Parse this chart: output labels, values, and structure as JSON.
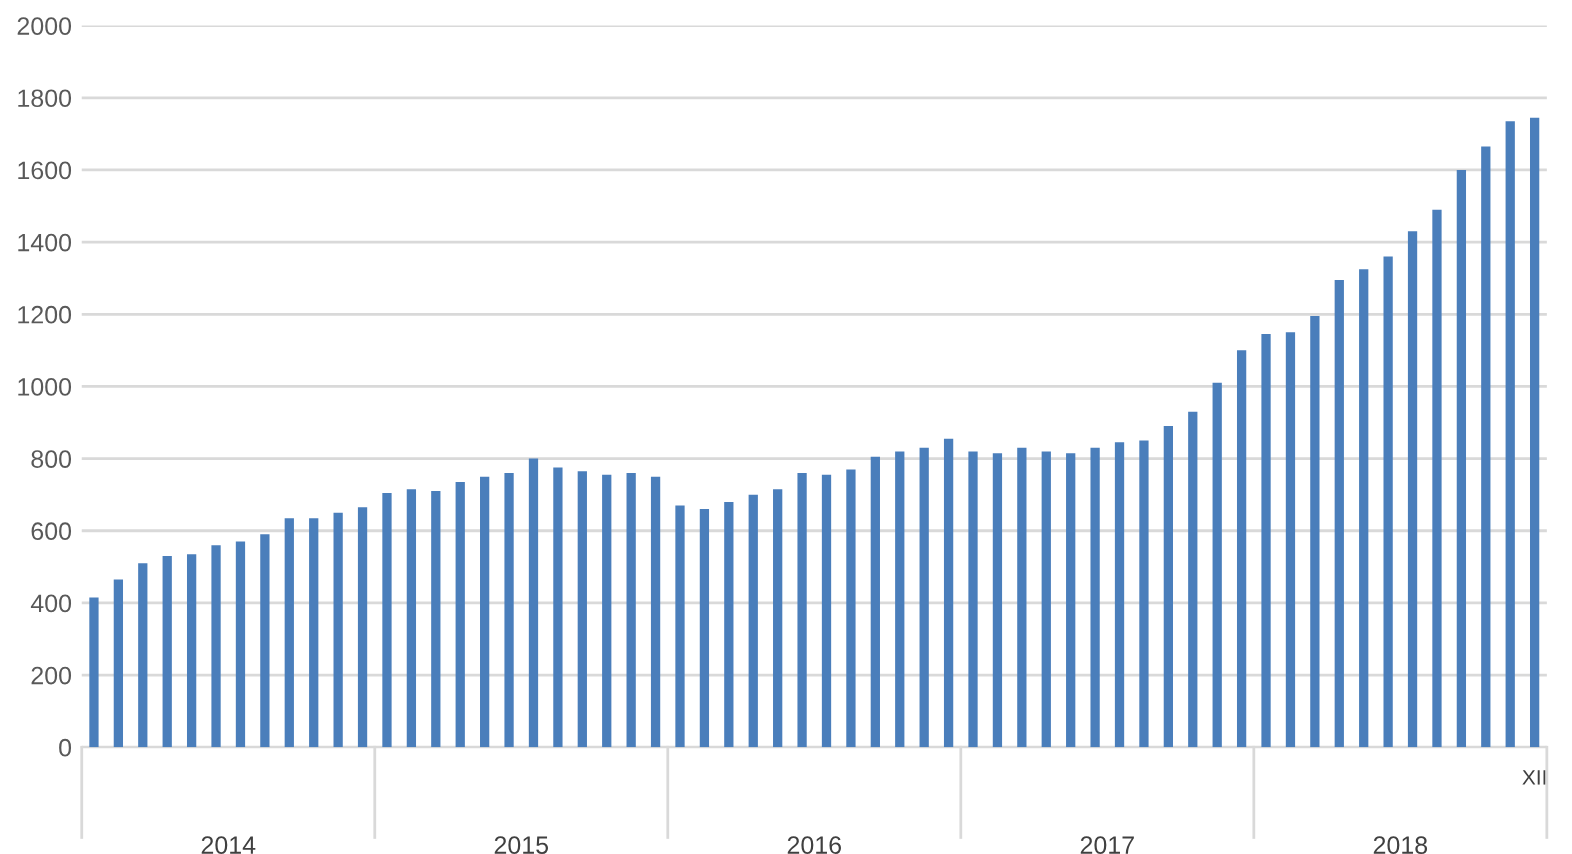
{
  "chart_data": {
    "type": "bar",
    "categories": [
      null,
      null,
      null,
      null,
      null,
      null,
      null,
      null,
      null,
      null,
      null,
      null,
      null,
      null,
      null,
      null,
      null,
      null,
      null,
      null,
      null,
      null,
      null,
      null,
      null,
      null,
      null,
      null,
      null,
      null,
      null,
      null,
      null,
      null,
      null,
      null,
      null,
      null,
      null,
      null,
      null,
      null,
      null,
      null,
      null,
      null,
      null,
      null,
      null,
      null,
      null,
      null,
      null,
      null,
      null,
      null,
      null,
      null,
      null,
      "XII"
    ],
    "values": [
      415,
      465,
      510,
      530,
      535,
      560,
      570,
      590,
      635,
      635,
      650,
      665,
      705,
      715,
      710,
      735,
      750,
      760,
      800,
      775,
      765,
      755,
      760,
      750,
      670,
      660,
      680,
      700,
      715,
      760,
      755,
      770,
      805,
      820,
      830,
      855,
      820,
      815,
      830,
      820,
      815,
      830,
      845,
      850,
      890,
      930,
      1010,
      1100,
      1145,
      1150,
      1195,
      1295,
      1325,
      1360,
      1430,
      1490,
      1600,
      1665,
      1735,
      1745
    ],
    "color": "#4a7ebb",
    "ylim": [
      0,
      2000
    ],
    "yticks": [
      0,
      200,
      400,
      600,
      800,
      1000,
      1200,
      1400,
      1600,
      1800,
      2000
    ],
    "grid": "y",
    "annotations": [
      "2014",
      "2015",
      "2016",
      "2017",
      "2018"
    ]
  }
}
